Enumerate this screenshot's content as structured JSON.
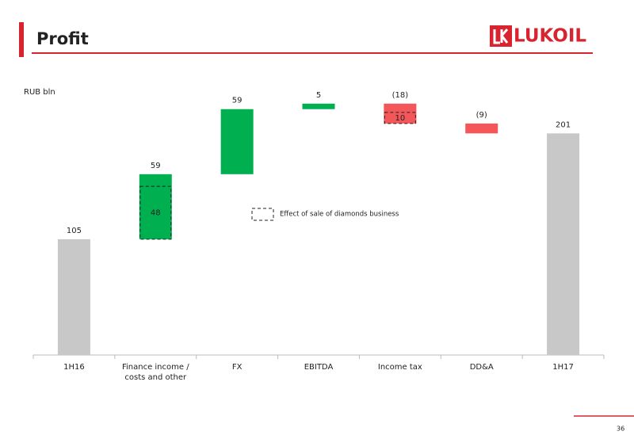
{
  "slide": {
    "title": "Profit",
    "logo": "LUKOIL",
    "page_number": "36"
  },
  "chart_data": {
    "type": "waterfall",
    "unit_label": "RUB bln",
    "categories": [
      "1H16",
      "Finance income / costs and other",
      "FX",
      "EBITDA",
      "Income tax",
      "DD&A",
      "1H17"
    ],
    "values": [
      105,
      59,
      59,
      5,
      -18,
      -9,
      201
    ],
    "value_labels": [
      "105",
      "59",
      "59",
      "5",
      "(18)",
      "(9)",
      "201"
    ],
    "colors": [
      "#c8c8c8",
      "#00b050",
      "#00b050",
      "#00b050",
      "#f4575a",
      "#f4575a",
      "#c8c8c8"
    ],
    "effect": {
      "name": "Effect of sale of diamonds business",
      "values": [
        null,
        48,
        null,
        null,
        10,
        null,
        null
      ]
    },
    "ylim": [
      0,
      230
    ]
  }
}
